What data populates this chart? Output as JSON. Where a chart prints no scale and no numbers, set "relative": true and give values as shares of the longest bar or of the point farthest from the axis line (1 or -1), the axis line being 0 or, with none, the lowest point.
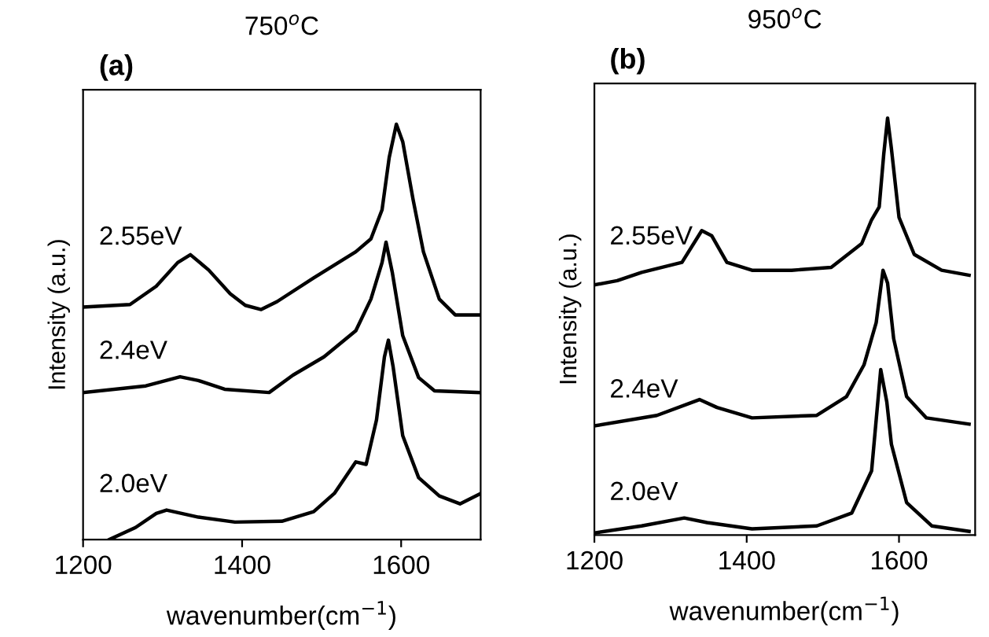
{
  "chart_data": [
    {
      "type": "line",
      "title": "750$^{o}$C",
      "xlabel": "wavenumber(cm$^{−1}$)",
      "ylabel": "Intensity (a.u.)",
      "annotations": [
        "(a)"
      ],
      "relative": true,
      "xlim": [
        1200,
        1700
      ],
      "xticks": [
        1200,
        1400,
        1600
      ],
      "legend": false,
      "tick_labels": "x",
      "series": [
        {
          "name": "2.55eV",
          "color": "#000000",
          "x": [
            1200,
            1259,
            1292,
            1319,
            1335,
            1358,
            1385,
            1404,
            1424,
            1444,
            1490,
            1543,
            1562,
            1576,
            1585,
            1594,
            1602,
            1615,
            1628,
            1648,
            1668,
            1700
          ],
          "values": [
            0.56,
            0.566,
            0.61,
            0.667,
            0.686,
            0.649,
            0.592,
            0.564,
            0.554,
            0.573,
            0.63,
            0.693,
            0.724,
            0.794,
            0.92,
            1.0,
            0.958,
            0.819,
            0.693,
            0.579,
            0.541,
            0.541
          ]
        },
        {
          "name": "2.4eV",
          "color": "#000000",
          "x": [
            1200,
            1279,
            1322,
            1345,
            1378,
            1434,
            1464,
            1503,
            1543,
            1562,
            1576,
            1581,
            1589,
            1602,
            1622,
            1642,
            1700
          ],
          "values": [
            0.354,
            0.37,
            0.392,
            0.383,
            0.362,
            0.354,
            0.396,
            0.44,
            0.503,
            0.579,
            0.667,
            0.716,
            0.642,
            0.491,
            0.39,
            0.358,
            0.354
          ]
        },
        {
          "name": "2.0eV",
          "color": "#000000",
          "x": [
            1233,
            1266,
            1292,
            1305,
            1345,
            1391,
            1450,
            1490,
            1516,
            1543,
            1556,
            1569,
            1579,
            1584,
            1590,
            1602,
            1622,
            1648,
            1674,
            1700
          ],
          "values": [
            0.0,
            0.029,
            0.063,
            0.071,
            0.054,
            0.042,
            0.044,
            0.067,
            0.111,
            0.187,
            0.181,
            0.288,
            0.44,
            0.48,
            0.415,
            0.25,
            0.149,
            0.105,
            0.086,
            0.111
          ]
        }
      ]
    },
    {
      "type": "line",
      "title": "950$^{o}$C",
      "xlabel": "wavenumber(cm$^{−1}$)",
      "ylabel": "Intensity (a.u.)",
      "annotations": [
        "(b)"
      ],
      "relative": true,
      "xlim": [
        1200,
        1700
      ],
      "xticks": [
        1200,
        1400,
        1600
      ],
      "legend": false,
      "tick_labels": "x",
      "series": [
        {
          "name": "2.55eV",
          "color": "#000000",
          "x": [
            1200,
            1230,
            1262,
            1315,
            1341,
            1354,
            1374,
            1407,
            1459,
            1511,
            1551,
            1564,
            1574,
            1580,
            1585,
            1590,
            1600,
            1620,
            1656,
            1692
          ],
          "values": [
            0.6,
            0.61,
            0.63,
            0.654,
            0.73,
            0.718,
            0.654,
            0.635,
            0.635,
            0.642,
            0.699,
            0.756,
            0.787,
            0.914,
            1.0,
            0.927,
            0.762,
            0.673,
            0.635,
            0.623
          ]
        },
        {
          "name": "2.4eV",
          "color": "#000000",
          "x": [
            1200,
            1282,
            1338,
            1361,
            1407,
            1492,
            1531,
            1554,
            1570,
            1579,
            1585,
            1593,
            1610,
            1636,
            1692
          ],
          "values": [
            0.262,
            0.287,
            0.325,
            0.306,
            0.281,
            0.287,
            0.332,
            0.408,
            0.509,
            0.635,
            0.604,
            0.471,
            0.332,
            0.281,
            0.266
          ]
        },
        {
          "name": "2.0eV",
          "color": "#000000",
          "x": [
            1200,
            1262,
            1318,
            1348,
            1407,
            1492,
            1538,
            1564,
            1576,
            1584,
            1590,
            1610,
            1643,
            1692
          ],
          "values": [
            0.005,
            0.022,
            0.041,
            0.03,
            0.015,
            0.022,
            0.053,
            0.154,
            0.397,
            0.319,
            0.218,
            0.078,
            0.022,
            0.009
          ]
        }
      ]
    }
  ]
}
